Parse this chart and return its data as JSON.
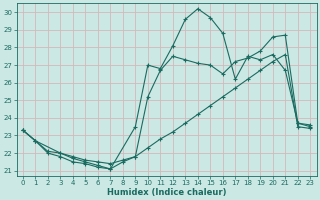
{
  "xlabel": "Humidex (Indice chaleur)",
  "background_color": "#cce8e4",
  "grid_color": "#d4b8b8",
  "line_color": "#1a6b60",
  "xlim": [
    -0.5,
    23.5
  ],
  "ylim": [
    20.7,
    30.5
  ],
  "xticks": [
    0,
    1,
    2,
    3,
    4,
    5,
    6,
    7,
    8,
    9,
    10,
    11,
    12,
    13,
    14,
    15,
    16,
    17,
    18,
    19,
    20,
    21,
    22,
    23
  ],
  "yticks": [
    21,
    22,
    23,
    24,
    25,
    26,
    27,
    28,
    29,
    30
  ],
  "series1_x": [
    0,
    1,
    2,
    3,
    4,
    5,
    6,
    7,
    9,
    10,
    11,
    12,
    13,
    14,
    15,
    16,
    17,
    18,
    19,
    20,
    21,
    22,
    23
  ],
  "series1_y": [
    23.3,
    22.7,
    22.0,
    21.8,
    21.5,
    21.4,
    21.2,
    21.1,
    23.5,
    27.0,
    26.8,
    28.1,
    29.6,
    30.2,
    29.7,
    28.8,
    26.2,
    27.5,
    27.3,
    27.6,
    26.7,
    23.7,
    23.5
  ],
  "series2_x": [
    0,
    1,
    3,
    4,
    5,
    6,
    7,
    8,
    9,
    10,
    11,
    12,
    13,
    14,
    15,
    16,
    17,
    18,
    19,
    20,
    21,
    22,
    23
  ],
  "series2_y": [
    23.3,
    22.7,
    22.0,
    21.7,
    21.5,
    21.3,
    21.1,
    21.5,
    21.8,
    25.2,
    26.7,
    27.5,
    27.3,
    27.1,
    27.0,
    26.5,
    27.2,
    27.4,
    27.8,
    28.6,
    28.7,
    23.7,
    23.6
  ],
  "series3_x": [
    0,
    1,
    2,
    3,
    4,
    5,
    6,
    7,
    8,
    9,
    10,
    11,
    12,
    13,
    14,
    15,
    16,
    17,
    18,
    19,
    20,
    21,
    22,
    23
  ],
  "series3_y": [
    23.3,
    22.7,
    22.1,
    22.0,
    21.8,
    21.6,
    21.5,
    21.4,
    21.6,
    21.8,
    22.3,
    22.8,
    23.2,
    23.7,
    24.2,
    24.7,
    25.2,
    25.7,
    26.2,
    26.7,
    27.2,
    27.6,
    23.5,
    23.4
  ]
}
